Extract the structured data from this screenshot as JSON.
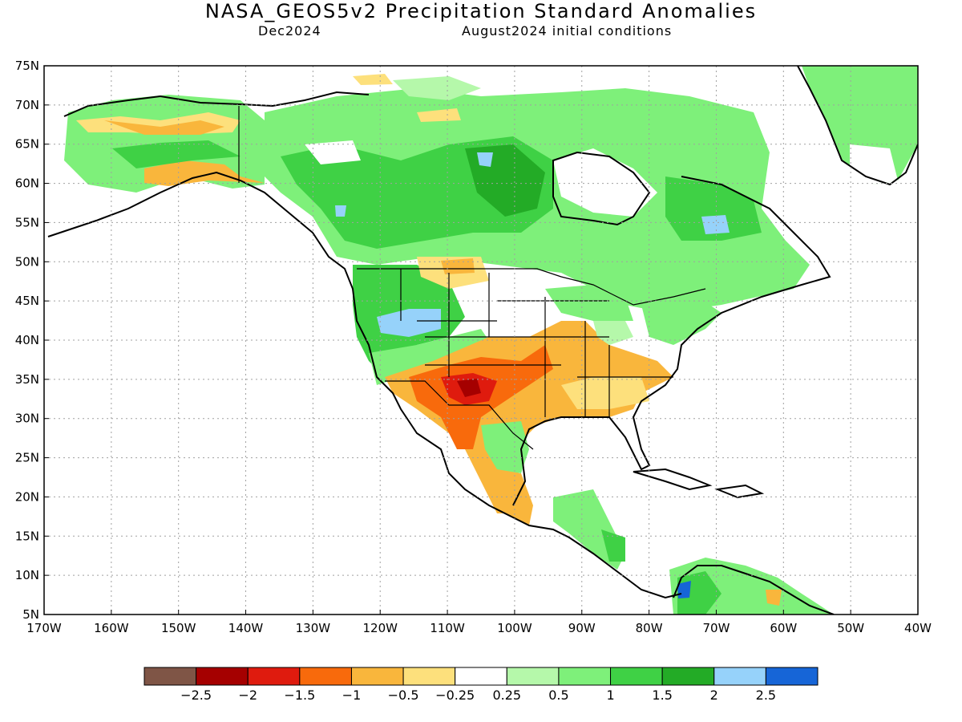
{
  "title": "NASA_GEOS5v2 Precipitation Standard Anomalies",
  "subtitle_left": "Dec2024",
  "subtitle_right": "August2024 initial conditions",
  "map": {
    "lon_range": [
      -170,
      -40
    ],
    "lat_range": [
      5,
      75
    ],
    "lon_labels": [
      "170W",
      "160W",
      "150W",
      "140W",
      "130W",
      "120W",
      "110W",
      "100W",
      "90W",
      "80W",
      "70W",
      "60W",
      "50W",
      "40W"
    ],
    "lat_labels": [
      "75N",
      "70N",
      "65N",
      "60N",
      "55N",
      "50N",
      "45N",
      "40N",
      "35N",
      "30N",
      "25N",
      "20N",
      "15N",
      "10N",
      "5N"
    ]
  },
  "colorbar": {
    "colors": [
      "#7f5546",
      "#a50000",
      "#df1b0e",
      "#f86a0c",
      "#f9b63c",
      "#fde07c",
      "#ffffff",
      "#b5f8aa",
      "#7ef07a",
      "#3fd145",
      "#23ab26",
      "#96d2fa",
      "#1665d7"
    ],
    "labels": [
      "-2.5",
      "-2",
      "-1.5",
      "-1",
      "-0.5",
      "-0.25",
      "0.25",
      "0.5",
      "1",
      "1.5",
      "2",
      "2.5"
    ]
  }
}
